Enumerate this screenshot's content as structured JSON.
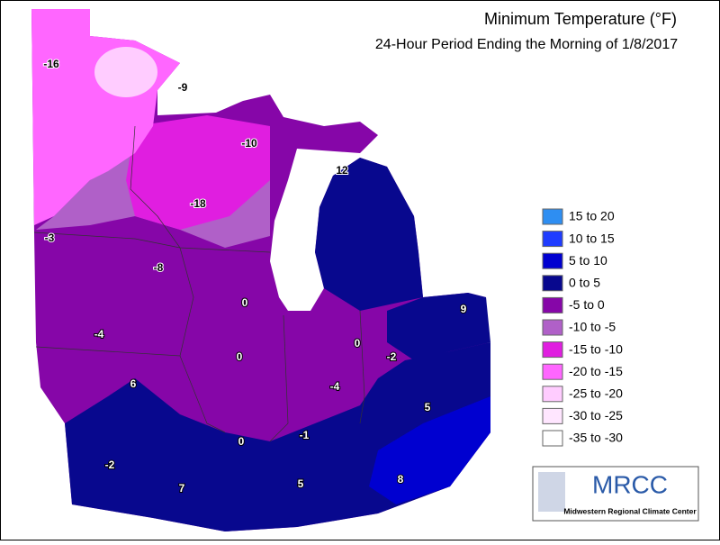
{
  "title": "Minimum Temperature (°F)",
  "subtitle": "24-Hour Period Ending the Morning of 1/8/2017",
  "legend": [
    {
      "label": "15 to 20",
      "color": "#2e8ef2"
    },
    {
      "label": "10 to 15",
      "color": "#1f3cff"
    },
    {
      "label": "5 to 10",
      "color": "#0000d0"
    },
    {
      "label": "0 to 5",
      "color": "#08088e"
    },
    {
      "label": "-5 to 0",
      "color": "#8606a8"
    },
    {
      "label": "-10 to -5",
      "color": "#b060c8"
    },
    {
      "label": "-15 to -10",
      "color": "#e01ee0"
    },
    {
      "label": "-20 to -15",
      "color": "#ff66ff"
    },
    {
      "label": "-25 to -20",
      "color": "#ffccff"
    },
    {
      "label": "-30 to -25",
      "color": "#ffe6ff"
    },
    {
      "label": "-35 to -30",
      "color": "#ffffff"
    }
  ],
  "map_labels": [
    -16,
    -9,
    -10,
    12,
    -3,
    -18,
    -8,
    0,
    -4,
    6,
    0,
    0,
    9,
    -2,
    -4,
    5,
    0,
    -1,
    -2,
    7,
    5,
    8
  ],
  "logo": {
    "name": "MRCC",
    "subtitle": "Midwestern Regional Climate Center"
  }
}
